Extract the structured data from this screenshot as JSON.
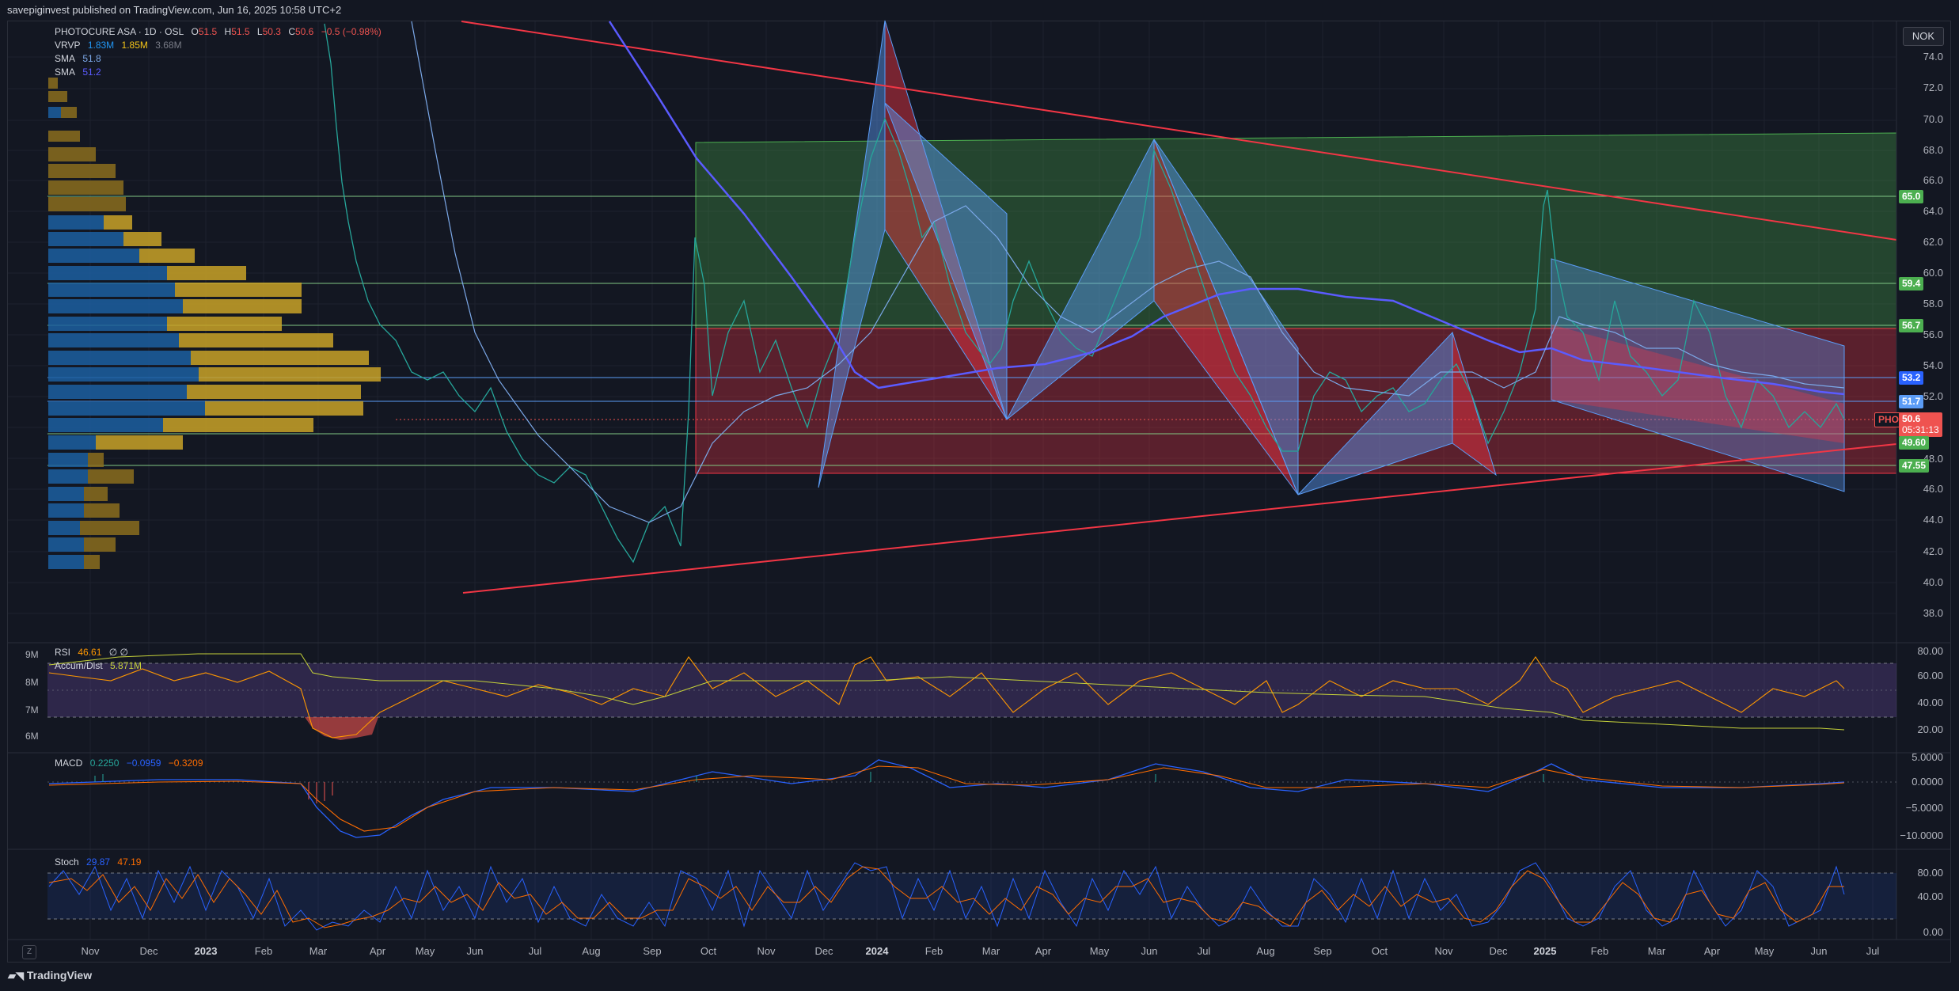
{
  "header": {
    "published_text": "savepiginvest published on TradingView.com, Jun 16, 2025 10:58 UTC+2"
  },
  "legend_main": {
    "symbol": "PHOTOCURE ASA · 1D · OSL",
    "o_label": "O",
    "o_value": "51.5",
    "h_label": "H",
    "h_value": "51.5",
    "l_label": "L",
    "l_value": "50.3",
    "c_label": "C",
    "c_value": "50.6",
    "change": "−0.5 (−0.98%)",
    "vrvp_label": "VRVP",
    "vrvp_v1": "1.83M",
    "vrvp_v2": "1.85M",
    "vrvp_v3": "3.68M",
    "sma1_label": "SMA",
    "sma1_value": "51.8",
    "sma2_label": "SMA",
    "sma2_value": "51.2"
  },
  "currency": "NOK",
  "price_axis": [
    "74.0",
    "72.0",
    "70.0",
    "68.0",
    "66.0",
    "64.0",
    "62.0",
    "60.0",
    "58.0",
    "56.0",
    "54.0",
    "52.0",
    "50.0",
    "48.0",
    "46.0",
    "44.0",
    "42.0",
    "40.0",
    "38.0"
  ],
  "price_badges": {
    "b65": "65.0",
    "b594": "59.4",
    "b567": "56.7",
    "b532": "53.2",
    "b517": "51.7",
    "pho_symbol": "PHO",
    "pho_price": "50.6",
    "pho_timer": "05:31:13",
    "b496": "49.60",
    "b4755": "47.55"
  },
  "rsi": {
    "label": "RSI",
    "value": "46.61",
    "extra": "∅ ∅",
    "accum_label": "Accum/Dist",
    "accum_value": "5.871M",
    "axis": [
      "80.00",
      "60.00",
      "40.00",
      "20.00"
    ],
    "left_axis": [
      "9M",
      "8M",
      "7M",
      "6M"
    ]
  },
  "macd": {
    "label": "MACD",
    "v1": "0.2250",
    "v2": "−0.0959",
    "v3": "−0.3209",
    "axis": [
      "5.0000",
      "0.0000",
      "−5.0000",
      "−10.0000"
    ]
  },
  "stoch": {
    "label": "Stoch",
    "v1": "29.87",
    "v2": "47.19",
    "axis": [
      "80.00",
      "40.00",
      "0.00"
    ]
  },
  "time_axis": [
    "Nov",
    "Dec",
    "2023",
    "Feb",
    "Mar",
    "Apr",
    "May",
    "Jun",
    "Jul",
    "Aug",
    "Sep",
    "Oct",
    "Nov",
    "Dec",
    "2024",
    "Feb",
    "Mar",
    "Apr",
    "May",
    "Jun",
    "Jul",
    "Aug",
    "Sep",
    "Oct",
    "Nov",
    "Dec",
    "2025",
    "Feb",
    "Mar",
    "Apr",
    "May",
    "Jun",
    "Jul"
  ],
  "footer": {
    "brand": "TradingView",
    "zoom_button": "Z"
  },
  "colors": {
    "background": "#131722",
    "up": "#26a69a",
    "down": "#ef5350",
    "sma_fast": "#2962ff",
    "sma_slow": "#5b9cf6",
    "trendline": "#f23645",
    "rsi_line": "#ff9800",
    "macd_line": "#2962ff",
    "signal_line": "#ff6d00",
    "stoch_k": "#2962ff",
    "stoch_d": "#ff6d00",
    "green_badge": "#4caf50",
    "blue_badge": "#2962ff"
  }
}
